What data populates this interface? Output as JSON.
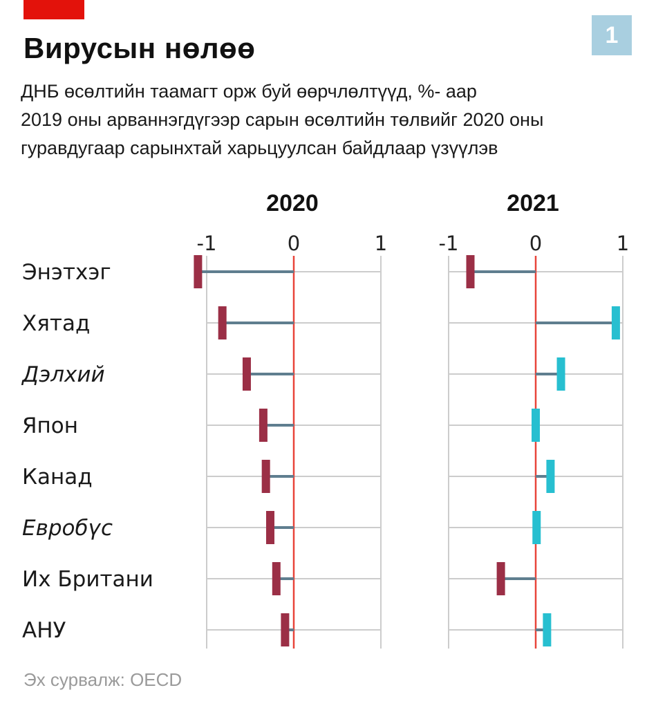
{
  "header": {
    "chart_number": "1",
    "title": "Вирусын нөлөө",
    "subtitle_lines": [
      "ДНБ өсөлтийн таамагт орж буй өөрчлөлтүүд, %- аар",
      "2019 оны арваннэгдүгээр сарын өсөлтийн төлвийг 2020 оны",
      "гуравдугаар сарынхтай харьцуулсан байдлаар үзүүлэв"
    ]
  },
  "source": "Эх сурвалж: OECD",
  "colors": {
    "negative": "#9b2f46",
    "positive": "#27bfd0",
    "stem": "#5f7e8f",
    "zero_line": "#e8443a",
    "grid": "#cccccc",
    "header_tag": "#e3120b",
    "number_box": "#a9cfe0"
  },
  "chart_data": {
    "type": "dot-stem",
    "categories": [
      "Энэтхэг",
      "Хятад",
      "Дэлхий",
      "Япон",
      "Канад",
      "Евробүс",
      "Их Британи",
      "АНУ"
    ],
    "italic_categories": [
      "Дэлхий",
      "Евробүс"
    ],
    "xlim": [
      -1,
      1
    ],
    "xticks": [
      "-1",
      "0",
      "1"
    ],
    "grid": true,
    "panels": [
      {
        "title": "2020",
        "values": [
          -1.1,
          -0.82,
          -0.54,
          -0.35,
          -0.32,
          -0.27,
          -0.2,
          -0.1
        ]
      },
      {
        "title": "2021",
        "values": [
          -0.75,
          0.92,
          0.29,
          0.0,
          0.17,
          0.01,
          -0.4,
          0.13
        ]
      }
    ]
  }
}
